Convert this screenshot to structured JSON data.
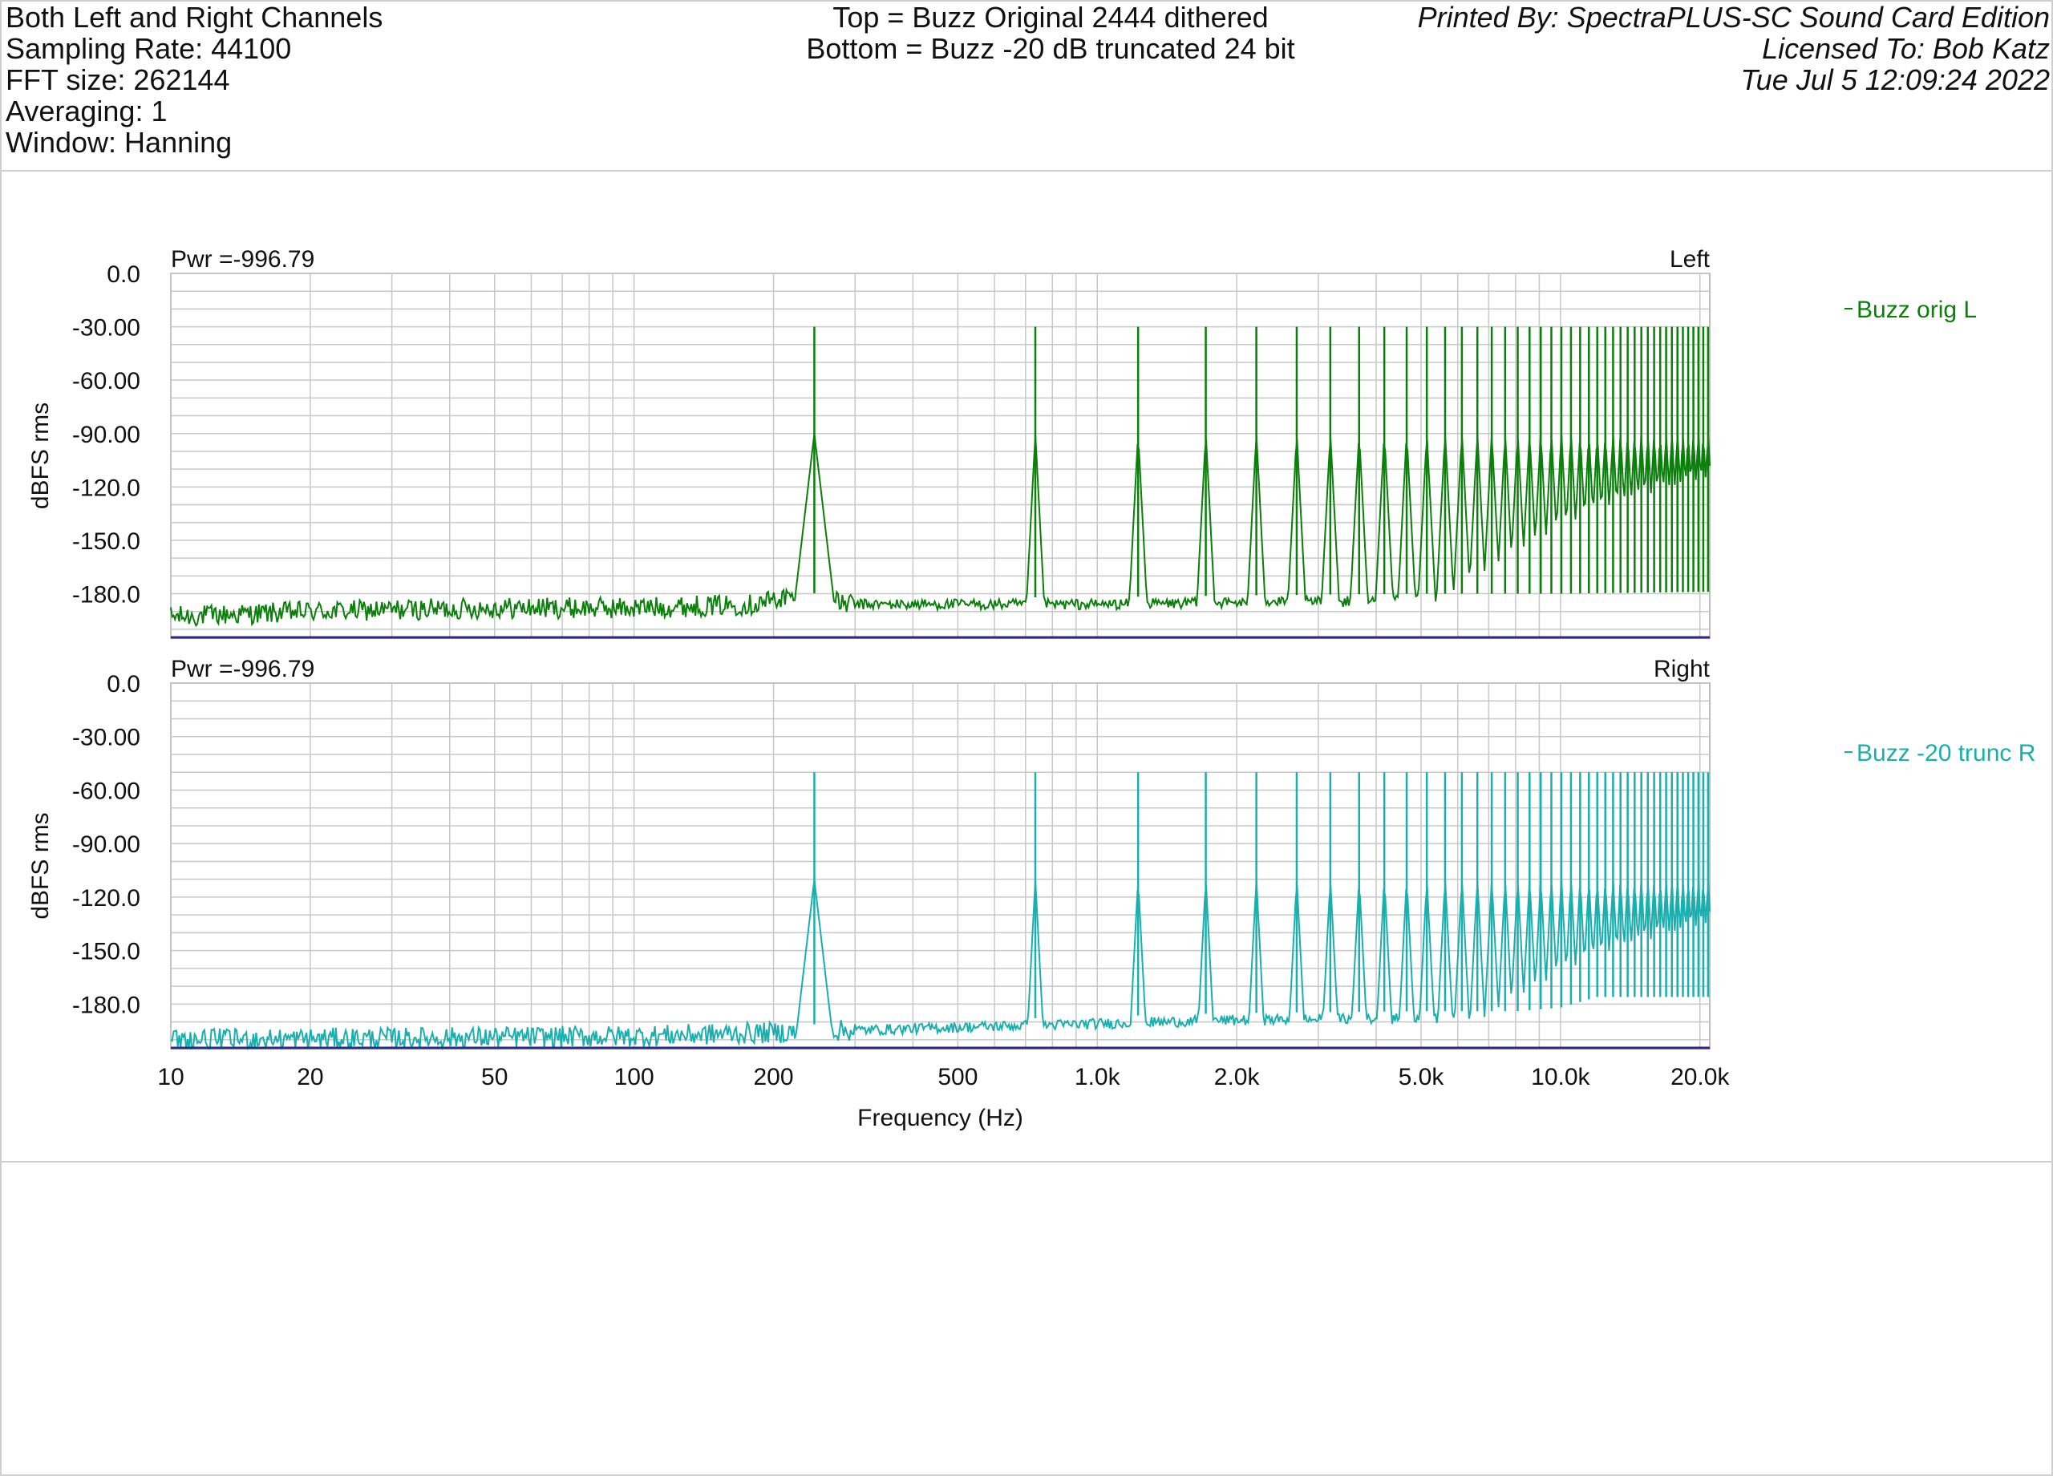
{
  "header": {
    "left_lines": [
      "Both Left and Right Channels",
      "Sampling Rate: 44100",
      "FFT size: 262144",
      "Averaging: 1",
      "Window: Hanning"
    ],
    "center_lines": [
      "Top = Buzz Original 2444 dithered",
      "Bottom = Buzz -20 dB truncated 24 bit"
    ],
    "right_lines": [
      "Printed By: SpectraPLUS-SC Sound Card Edition",
      "Licensed To: Bob Katz",
      "Tue Jul  5 12:09:24 2022"
    ]
  },
  "colors": {
    "left_trace": "#0a7f0a",
    "right_trace": "#1aafaf",
    "baseline": "#2a2a8a",
    "grid": "#c8c8c8",
    "axis_text": "#111111"
  },
  "chart_data": [
    {
      "type": "line",
      "panel": "Left",
      "power_label": "Pwr =-996.79",
      "channel_label": "Left",
      "ylabel": "dBFS rms",
      "xlabel": "",
      "x_scale": "log",
      "xlim": [
        10,
        21000
      ],
      "ylim": [
        -205,
        0
      ],
      "y_ticks": [
        0,
        -30,
        -60,
        -90,
        -120,
        -150,
        -180
      ],
      "y_tick_labels": [
        "0.0",
        "-30.00",
        "-60.00",
        "-90.00",
        "-120.0",
        "-150.0",
        "-180.0"
      ],
      "series": [
        {
          "name": "Buzz orig L",
          "color": "#0a7f0a",
          "noise_floor_points": [
            [
              10,
              -193
            ],
            [
              20,
              -190
            ],
            [
              50,
              -188
            ],
            [
              100,
              -188
            ],
            [
              180,
              -186
            ],
            [
              210,
              -182
            ],
            [
              300,
              -186
            ],
            [
              500,
              -186
            ],
            [
              1000,
              -186
            ],
            [
              2000,
              -185
            ],
            [
              5000,
              -184
            ],
            [
              10000,
              -184
            ],
            [
              20000,
              -183
            ]
          ],
          "fundamental_hz": 245,
          "peak_level_dbfs": -30,
          "harmonics_visible": "odd harmonics up to ~21 kHz"
        }
      ]
    },
    {
      "type": "line",
      "panel": "Right",
      "power_label": "Pwr =-996.79",
      "channel_label": "Right",
      "ylabel": "dBFS rms",
      "xlabel": "Frequency (Hz)",
      "x_scale": "log",
      "xlim": [
        10,
        21000
      ],
      "ylim": [
        -205,
        0
      ],
      "x_ticks": [
        10,
        20,
        50,
        100,
        200,
        500,
        1000,
        2000,
        5000,
        10000,
        20000
      ],
      "x_tick_labels": [
        "10",
        "20",
        "50",
        "100",
        "200",
        "500",
        "1.0k",
        "2.0k",
        "5.0k",
        "10.0k",
        "20.0k"
      ],
      "y_ticks": [
        0,
        -30,
        -60,
        -90,
        -120,
        -150,
        -180
      ],
      "y_tick_labels": [
        "0.0",
        "-30.00",
        "-60.00",
        "-90.00",
        "-120.0",
        "-150.0",
        "-180.0"
      ],
      "series": [
        {
          "name": "Buzz -20 trunc R",
          "color": "#1aafaf",
          "noise_floor_points": [
            [
              10,
              -200
            ],
            [
              100,
              -198
            ],
            [
              200,
              -196
            ],
            [
              500,
              -193
            ],
            [
              1000,
              -191
            ],
            [
              2000,
              -189
            ],
            [
              5000,
              -188
            ],
            [
              8000,
              -188
            ],
            [
              10000,
              -186
            ],
            [
              12000,
              -180
            ],
            [
              20000,
              -180
            ]
          ],
          "fundamental_hz": 245,
          "peak_level_dbfs": -50,
          "harmonics_visible": "odd harmonics up to ~21 kHz"
        }
      ]
    }
  ]
}
